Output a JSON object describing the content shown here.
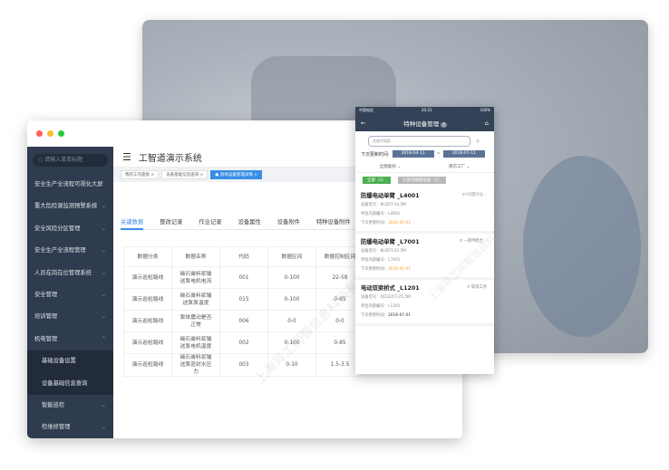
{
  "colors": {
    "accent": "#3a8ee6",
    "sidebar": "#2f3b4e",
    "phone_nav": "#344257",
    "green": "#4caf50",
    "orange": "#f0a030"
  },
  "window": {
    "dots": [
      "#ff5f57",
      "#febc2e",
      "#28c840"
    ]
  },
  "sidebar": {
    "search_placeholder": "请输入菜单标题",
    "items": [
      {
        "label": "安全生产全流程可视化大屏",
        "chevron": ""
      },
      {
        "label": "重大危险源监测预警系统",
        "chevron": "⌄"
      },
      {
        "label": "安全风险分区管理",
        "chevron": "⌄"
      },
      {
        "label": "安全生产全流程管理",
        "chevron": "⌄"
      },
      {
        "label": "人员在岗在位管理系统",
        "chevron": "⌄"
      },
      {
        "label": "安全管理",
        "chevron": "⌄"
      },
      {
        "label": "培训管理",
        "chevron": "⌄"
      },
      {
        "label": "机电管理",
        "chevron": "⌃"
      },
      {
        "label": "基础设备设置",
        "chevron": ""
      },
      {
        "label": "设备基础信息查询",
        "chevron": ""
      },
      {
        "label": "智能巡检",
        "chevron": "⌄"
      },
      {
        "label": "检维修管理",
        "chevron": "⌄"
      }
    ]
  },
  "header": {
    "title": "工智道演示系统",
    "tags": [
      "我的工作面板 ×",
      "设备基础信息查询 ×",
      "● 具体设备管理详情 ×"
    ]
  },
  "content_tabs": [
    "关键数据",
    "整改记录",
    "作业记录",
    "设备属性",
    "设备附件",
    "特种设备附件"
  ],
  "table": {
    "headers": [
      "数据分类",
      "数据名称",
      "代码",
      "数据区间",
      "数据控制区间"
    ],
    "rows": [
      [
        "演示巡检路线",
        "碳石膏料浆输送泵电机电流",
        "001",
        "0-100",
        "22-58"
      ],
      [
        "演示巡检路线",
        "碳石膏料浆输送泵泵温度",
        "015",
        "0-100",
        "0-65"
      ],
      [
        "演示巡检路线",
        "泵体震动是否正常",
        "006",
        "0-0",
        "0-0"
      ],
      [
        "演示巡检路线",
        "碳石膏料浆输送泵电机温度",
        "002",
        "0-100",
        "0-85"
      ],
      [
        "演示巡检路线",
        "碳石膏料浆输送泵密封水压力",
        "003",
        "0-10",
        "1.5-3.5"
      ]
    ]
  },
  "watermark": "上海异工同智信息科技有限公司",
  "phone": {
    "carrier": "中国电信",
    "time": "20:21",
    "battery": "100%",
    "title": "特种设备管理",
    "help": "?",
    "search_placeholder": "关键字搜索",
    "date_label": "下次更新时间:",
    "date_from": "2018-04-11",
    "date_sep": "~",
    "date_to": "2018-07-11",
    "filter1": "全部类别 ⌄",
    "filter2": "南京工厂 ⌄",
    "btn_all": "全部（3）",
    "btn_only": "只显示临期设备（2）",
    "items": [
      {
        "name": "防爆电动单臂 _L4001",
        "location": "C0溶冷分...",
        "model": "设备型号：BLD5T-14.5M",
        "code": "单位内部编号：L4001",
        "next_label": "下次更新时间：",
        "next": "2018-05-01",
        "warn": true
      },
      {
        "name": "防爆电动单臂 _L7001",
        "location": "一期甲醛合...",
        "model": "设备型号：BLD5T-22.5M",
        "code": "单位内部编号：L7001",
        "next_label": "下次更新时间：",
        "next": "2018-05-01",
        "warn": true
      },
      {
        "name": "电动双梁桥式 _L1201",
        "location": "碳渣工序",
        "model": "设备型号：QD32/5T-25.5M",
        "code": "单位内部编号：L1201",
        "next_label": "下次更新时间：",
        "next": "2018-07-01",
        "warn": false
      }
    ]
  }
}
